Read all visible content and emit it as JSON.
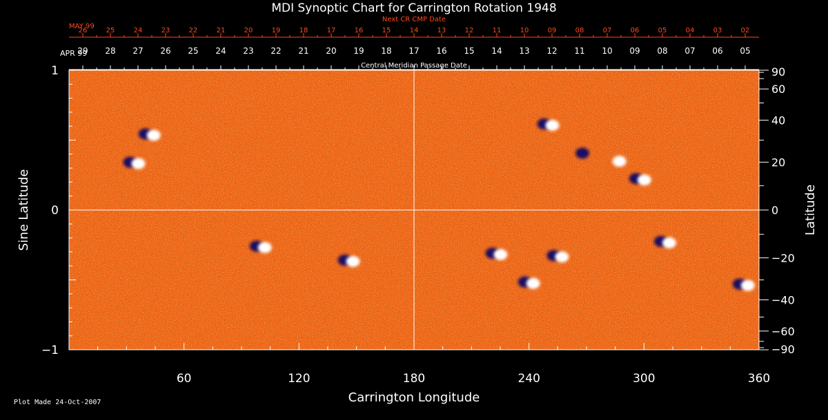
{
  "chart_data": {
    "type": "heatmap",
    "title": "MDI Synoptic Chart for Carrington Rotation 1948",
    "xlabel": "Carrington Longitude",
    "ylabel_left": "Sine Latitude",
    "ylabel_right": "Latitude",
    "xlim": [
      0,
      360
    ],
    "ylim": [
      -1,
      1
    ],
    "x_ticks": [
      60,
      120,
      180,
      240,
      300,
      360
    ],
    "y_ticks_left": [
      {
        "v": 1,
        "label": "1"
      },
      {
        "v": 0,
        "label": "0"
      },
      {
        "v": -1,
        "label": "−1"
      }
    ],
    "y_ticks_right": [
      {
        "lat": 90,
        "label": "90"
      },
      {
        "lat": 60,
        "label": "60"
      },
      {
        "lat": 40,
        "label": "40"
      },
      {
        "lat": 20,
        "label": "20"
      },
      {
        "lat": 0,
        "label": "0"
      },
      {
        "lat": -20,
        "label": "−20"
      },
      {
        "lat": -40,
        "label": "−40"
      },
      {
        "lat": -60,
        "label": "−60"
      },
      {
        "lat": -90,
        "label": "−90"
      }
    ],
    "cmp_axis": {
      "label": "Central Meridian Passage Date",
      "month_label": "APR 99",
      "dates": [
        "29",
        "28",
        "27",
        "26",
        "25",
        "24",
        "23",
        "22",
        "21",
        "20",
        "19",
        "18",
        "17",
        "16",
        "15",
        "14",
        "13",
        "12",
        "11",
        "10",
        "09",
        "08",
        "07",
        "06",
        "05"
      ]
    },
    "next_cmp_axis": {
      "label": "Next CR CMP Date",
      "month_label": "MAY 99",
      "dates": [
        "26",
        "25",
        "24",
        "23",
        "22",
        "21",
        "20",
        "19",
        "18",
        "17",
        "16",
        "15",
        "14",
        "13",
        "12",
        "11",
        "10",
        "09",
        "08",
        "07",
        "06",
        "05",
        "04",
        "03",
        "02"
      ]
    },
    "grid_lines": {
      "vertical_x": 180,
      "horizontal_y": 0
    },
    "colors": {
      "background": "#000000",
      "text": "#ffffff",
      "next_axis": "#ff4a1c",
      "field_base": "#f06010",
      "positive_polarity": "#ffffff",
      "negative_polarity": "#1a1060"
    },
    "active_regions": [
      {
        "lon": 34,
        "lat": 20,
        "polarity": "bipolar"
      },
      {
        "lon": 42,
        "lat": 33,
        "polarity": "bipolar"
      },
      {
        "lon": 100,
        "lat": -15,
        "polarity": "bipolar"
      },
      {
        "lon": 146,
        "lat": -21,
        "polarity": "bipolar"
      },
      {
        "lon": 250,
        "lat": 38,
        "polarity": "bipolar"
      },
      {
        "lon": 270,
        "lat": 24,
        "polarity": "negative"
      },
      {
        "lon": 285,
        "lat": 21,
        "polarity": "positive"
      },
      {
        "lon": 298,
        "lat": 13,
        "polarity": "bipolar"
      },
      {
        "lon": 223,
        "lat": -18,
        "polarity": "bipolar"
      },
      {
        "lon": 255,
        "lat": -19,
        "polarity": "bipolar"
      },
      {
        "lon": 240,
        "lat": -31,
        "polarity": "bipolar"
      },
      {
        "lon": 311,
        "lat": -13,
        "polarity": "bipolar"
      },
      {
        "lon": 352,
        "lat": -32,
        "polarity": "bipolar"
      }
    ]
  },
  "footer": "Plot Made 24-Oct-2007"
}
